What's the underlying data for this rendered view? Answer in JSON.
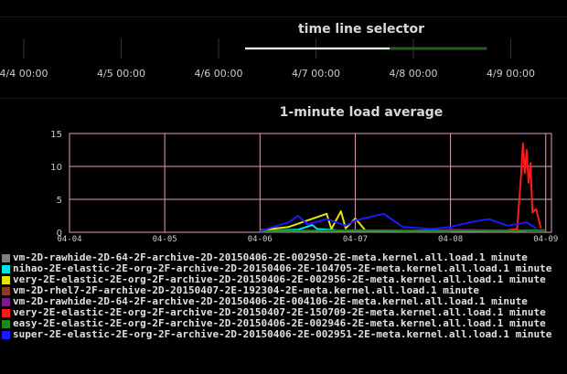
{
  "selector": {
    "title": "time line selector",
    "tick_labels": [
      "4/4 00:00",
      "4/5 00:00",
      "4/6 00:00",
      "4/7 00:00",
      "4/8 00:00",
      "4/9 00:00"
    ],
    "range_start_fraction": 0.0,
    "range_end_fraction": 1.0
  },
  "chart_data": {
    "type": "line",
    "title": "1-minute load average",
    "xlabel": "",
    "ylabel": "",
    "x_tick_labels": [
      "04-04",
      "04-05",
      "04-06",
      "04-07",
      "04-08",
      "04-09"
    ],
    "x_range": [
      "04-04",
      "04-09"
    ],
    "ylim": [
      0,
      15
    ],
    "y_ticks": [
      0,
      5,
      10,
      15
    ],
    "grid": true,
    "legend_placement": "bottom",
    "series": [
      {
        "name": "vm-2D-rawhide-2D-64-2F-archive-2D-20150406-2E-002950-2E-meta.kernel.all.load.1 minute",
        "color": "#808080",
        "points": [
          [
            "04-06",
            0.1
          ],
          [
            "04-08",
            0.1
          ]
        ]
      },
      {
        "name": "nihao-2E-elastic-2E-org-2F-archive-2D-20150406-2E-104705-2E-meta.kernel.all.load.1 minute",
        "color": "#00e5e5",
        "points": [
          [
            "04-06",
            0.2
          ],
          [
            "04-06.4",
            0.4
          ],
          [
            "04-06.55",
            1.1
          ],
          [
            "04-06.6",
            0.5
          ],
          [
            "04-06.8",
            0.3
          ]
        ]
      },
      {
        "name": "very-2E-elastic-2E-org-2F-archive-2D-20150406-2E-002956-2E-meta.kernel.all.load.1 minute",
        "color": "#e5e500",
        "points": [
          [
            "04-06",
            0.3
          ],
          [
            "04-06.3",
            0.8
          ],
          [
            "04-06.7",
            2.8
          ],
          [
            "04-06.75",
            0.5
          ],
          [
            "04-06.85",
            3.2
          ],
          [
            "04-06.9",
            0.6
          ],
          [
            "04-07.0",
            2.1
          ],
          [
            "04-07.1",
            0.4
          ]
        ]
      },
      {
        "name": "vm-2D-rhel7-2F-archive-2D-20150407-2E-192304-2E-meta.kernel.all.load.1 minute",
        "color": "#8b3a2a",
        "points": [
          [
            "04-07.5",
            0.2
          ],
          [
            "04-07.8",
            0.3
          ],
          [
            "04-08.4",
            0.2
          ]
        ]
      },
      {
        "name": "vm-2D-rawhide-2D-64-2F-archive-2D-20150406-2E-004106-2E-meta.kernel.all.load.1 minute",
        "color": "#7a1a8a",
        "points": [
          [
            "04-07.8",
            0.2
          ],
          [
            "04-08.0",
            0.4
          ],
          [
            "04-08.8",
            0.2
          ]
        ]
      },
      {
        "name": "very-2E-elastic-2E-org-2F-archive-2D-20150407-2E-150709-2E-meta.kernel.all.load.1 minute",
        "color": "#ff1a1a",
        "points": [
          [
            "04-08.6",
            0.3
          ],
          [
            "04-08.7",
            0.5
          ],
          [
            "04-08.74",
            8.5
          ],
          [
            "04-08.76",
            13.5
          ],
          [
            "04-08.78",
            9.0
          ],
          [
            "04-08.8",
            12.5
          ],
          [
            "04-08.82",
            7.5
          ],
          [
            "04-08.84",
            10.5
          ],
          [
            "04-08.86",
            3.0
          ],
          [
            "04-08.9",
            3.5
          ],
          [
            "04-08.95",
            0.6
          ]
        ]
      },
      {
        "name": "easy-2E-elastic-2E-org-2F-archive-2D-20150406-2E-002946-2E-meta.kernel.all.load.1 minute",
        "color": "#1a8a1a",
        "points": [
          [
            "04-06",
            0.2
          ],
          [
            "04-07",
            0.3
          ],
          [
            "04-08",
            0.2
          ],
          [
            "04-09",
            0.3
          ]
        ]
      },
      {
        "name": "super-2E-elastic-2E-org-2F-archive-2D-20150406-2E-002951-2E-meta.kernel.all.load.1 minute",
        "color": "#1a1aff",
        "points": [
          [
            "04-06",
            0.2
          ],
          [
            "04-06.3",
            1.5
          ],
          [
            "04-06.4",
            2.5
          ],
          [
            "04-06.5",
            1.2
          ],
          [
            "04-06.7",
            2.0
          ],
          [
            "04-06.9",
            1.0
          ],
          [
            "04-07.0",
            1.8
          ],
          [
            "04-07.3",
            2.8
          ],
          [
            "04-07.5",
            0.8
          ],
          [
            "04-07.8",
            0.5
          ],
          [
            "04-08.0",
            0.8
          ],
          [
            "04-08.2",
            1.5
          ],
          [
            "04-08.4",
            2.0
          ],
          [
            "04-08.6",
            1.0
          ],
          [
            "04-08.8",
            1.5
          ],
          [
            "04-08.9",
            0.6
          ]
        ]
      }
    ]
  }
}
